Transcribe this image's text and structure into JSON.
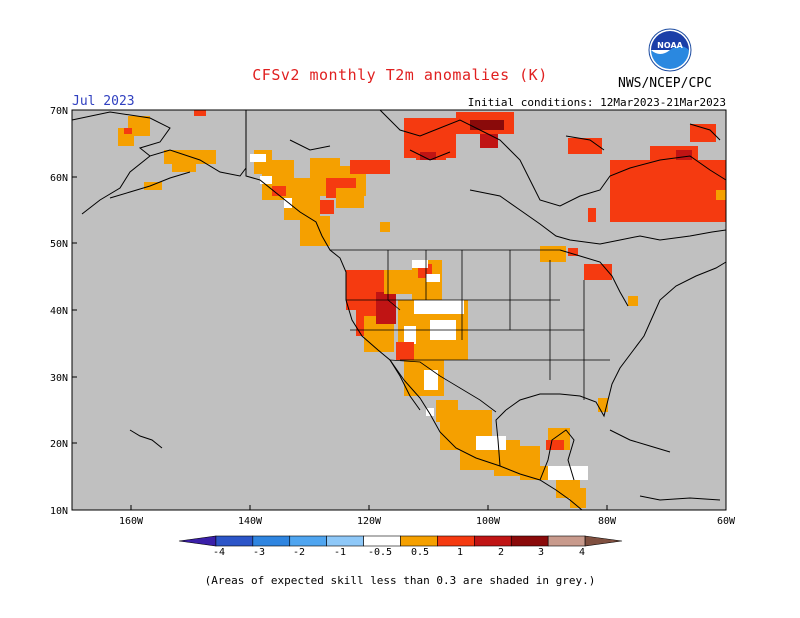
{
  "header": {
    "title": "CFSv2 monthly T2m anomalies (K)",
    "month": "Jul 2023",
    "initial_conditions": "Initial conditions: 12Mar2023-21Mar2023",
    "agency": "NWS/NCEP/CPC",
    "logo_text": "NOAA"
  },
  "map": {
    "lat_labels": [
      "70N",
      "60N",
      "50N",
      "40N",
      "30N",
      "20N",
      "10N"
    ],
    "lon_labels": [
      "160W",
      "140W",
      "120W",
      "100W",
      "80W",
      "60W"
    ],
    "background_color": "#c0c0c0",
    "land_line_color": "#000000"
  },
  "legend": {
    "labels": [
      "-4",
      "-3",
      "-2",
      "-1",
      "-0.5",
      "0.5",
      "1",
      "2",
      "3",
      "4"
    ],
    "colors": [
      "#3a1fa8",
      "#2c55c8",
      "#2f85e0",
      "#4fa5f0",
      "#8ec8f8",
      "#ffffff",
      "#f5a000",
      "#f53a10",
      "#c01414",
      "#8a0a0a",
      "#c89a8c",
      "#805040"
    ]
  },
  "footnote": "(Areas of expected skill less than 0.3 are shaded in grey.)"
}
